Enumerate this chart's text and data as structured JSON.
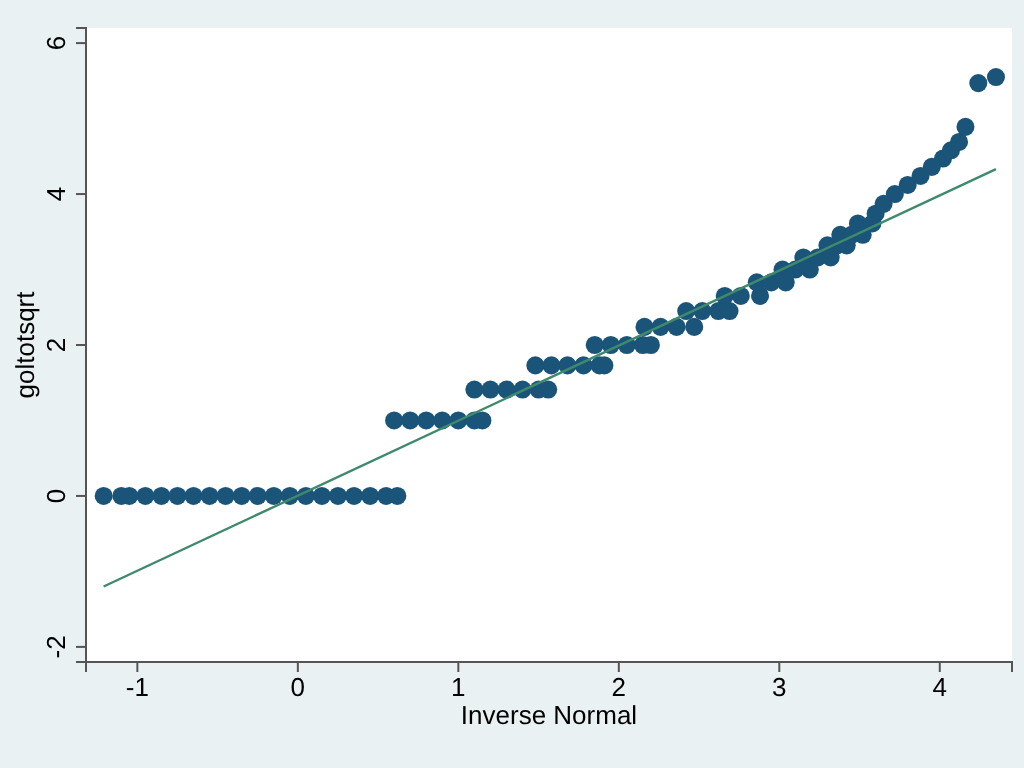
{
  "chart_data": {
    "type": "scatter",
    "xlabel": "Inverse Normal",
    "ylabel": "goltotsqrt",
    "xlim": [
      -1.32,
      4.45
    ],
    "ylim": [
      -2.2,
      6.2
    ],
    "xticks": [
      -1,
      0,
      1,
      2,
      3,
      4
    ],
    "yticks": [
      -2,
      0,
      2,
      4,
      6
    ],
    "grid": false,
    "series": [
      {
        "marker": "circle",
        "color": "#1b5479",
        "x": [
          -1.21,
          -1.1,
          -1.05,
          -0.95,
          -0.85,
          -0.75,
          -0.65,
          -0.55,
          -0.45,
          -0.35,
          -0.25,
          -0.15,
          -0.05,
          0.05,
          0.15,
          0.25,
          0.35,
          0.45,
          0.55,
          0.62,
          0.6,
          0.7,
          0.8,
          0.9,
          1.0,
          1.1,
          1.15,
          1.1,
          1.2,
          1.3,
          1.4,
          1.5,
          1.56,
          1.48,
          1.58,
          1.68,
          1.78,
          1.88,
          1.91,
          1.85,
          1.95,
          2.05,
          2.15,
          2.2,
          2.16,
          2.26,
          2.36,
          2.47,
          2.42,
          2.52,
          2.62,
          2.69,
          2.66,
          2.76,
          2.88,
          2.86,
          2.95,
          3.04,
          3.02,
          3.1,
          3.19,
          3.15,
          3.24,
          3.32,
          3.3,
          3.36,
          3.42,
          3.38,
          3.45,
          3.52,
          3.49,
          3.58,
          3.6,
          3.65,
          3.72,
          3.8,
          3.88,
          3.95,
          4.02,
          4.07,
          4.12,
          4.16,
          4.24,
          4.35
        ],
        "values": [
          0,
          0,
          0,
          0,
          0,
          0,
          0,
          0,
          0,
          0,
          0,
          0,
          0,
          0,
          0,
          0,
          0,
          0,
          0,
          0,
          1,
          1,
          1,
          1,
          1,
          1,
          1,
          1.41,
          1.41,
          1.41,
          1.41,
          1.41,
          1.41,
          1.73,
          1.73,
          1.73,
          1.73,
          1.73,
          1.73,
          2,
          2,
          2,
          2,
          2,
          2.24,
          2.24,
          2.24,
          2.24,
          2.45,
          2.45,
          2.45,
          2.45,
          2.65,
          2.65,
          2.65,
          2.83,
          2.83,
          2.83,
          3,
          3,
          3,
          3.16,
          3.16,
          3.16,
          3.32,
          3.32,
          3.32,
          3.46,
          3.46,
          3.46,
          3.61,
          3.61,
          3.74,
          3.87,
          4.0,
          4.12,
          4.24,
          4.36,
          4.47,
          4.58,
          4.69,
          4.89,
          5.47,
          5.55
        ]
      },
      {
        "type": "line",
        "color": "#3f8a6c",
        "x": [
          -1.21,
          4.35
        ],
        "values": [
          -1.2,
          4.33
        ]
      }
    ]
  }
}
